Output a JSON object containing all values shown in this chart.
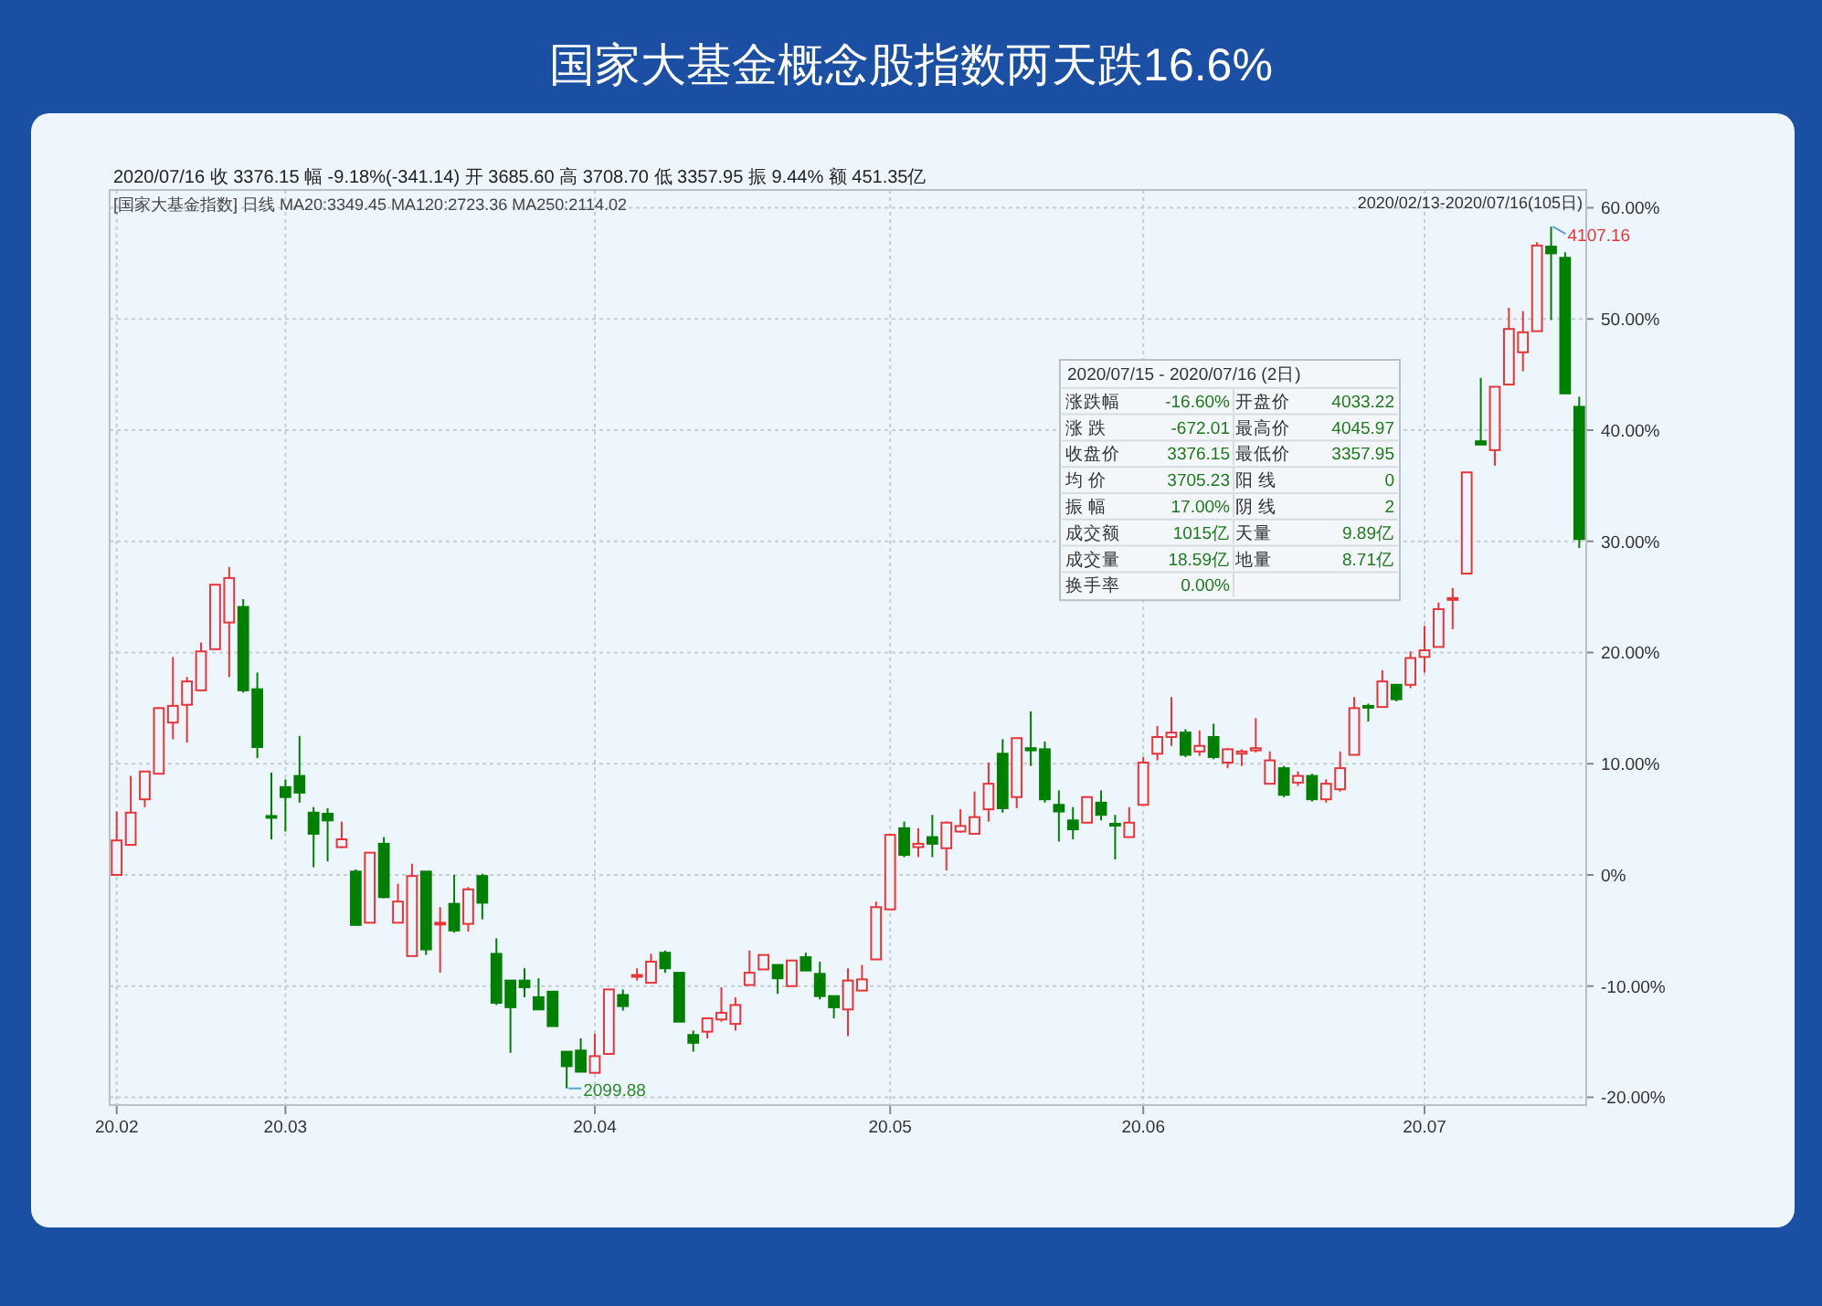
{
  "chart_data": {
    "type": "candlestick",
    "title": "国家大基金概念股指数两天跌16.6%",
    "categories": [
      "20.02",
      null,
      null,
      null,
      null,
      null,
      null,
      null,
      null,
      null,
      null,
      null,
      "20.03",
      null,
      null,
      null,
      null,
      null,
      null,
      null,
      null,
      null,
      null,
      null,
      null,
      null,
      null,
      null,
      null,
      null,
      null,
      null,
      null,
      null,
      "20.04",
      null,
      null,
      null,
      null,
      null,
      null,
      null,
      null,
      null,
      null,
      null,
      null,
      null,
      null,
      null,
      null,
      null,
      null,
      null,
      null,
      "20.05",
      null,
      null,
      null,
      null,
      null,
      null,
      null,
      null,
      null,
      null,
      null,
      null,
      null,
      null,
      null,
      null,
      null,
      "20.06",
      null,
      null,
      null,
      null,
      null,
      null,
      null,
      null,
      null,
      null,
      null,
      null,
      null,
      null,
      null,
      null,
      null,
      null,
      null,
      "20.07",
      null,
      null,
      null,
      null,
      null,
      null,
      null,
      null,
      null,
      null,
      null
    ],
    "ohlc": [
      [
        0,
        5.7,
        0,
        3.1
      ],
      [
        2.7,
        8.9,
        2.7,
        5.6
      ],
      [
        6.8,
        9.3,
        6.1,
        9.3
      ],
      [
        9.1,
        15.1,
        9.1,
        15.0
      ],
      [
        13.7,
        19.6,
        12.2,
        15.2
      ],
      [
        15.3,
        17.8,
        11.9,
        17.4
      ],
      [
        16.6,
        20.9,
        16.6,
        20.1
      ],
      [
        20.3,
        26.1,
        20.3,
        26.1
      ],
      [
        22.7,
        27.7,
        17.8,
        26.7
      ],
      [
        24.1,
        24.8,
        16.4,
        16.6
      ],
      [
        16.7,
        18.2,
        10.5,
        11.5
      ],
      [
        5.3,
        9.2,
        3.2,
        5.2
      ],
      [
        7.9,
        8.6,
        3.9,
        7.0
      ],
      [
        8.9,
        12.5,
        6.5,
        7.4
      ],
      [
        5.6,
        6.1,
        0.7,
        3.7
      ],
      [
        5.5,
        6.0,
        1.2,
        4.9
      ],
      [
        2.5,
        4.8,
        2.4,
        3.2
      ],
      [
        0.3,
        0.5,
        -4.5,
        -4.5
      ],
      [
        -4.3,
        2.0,
        -4.3,
        2.0
      ],
      [
        2.8,
        3.4,
        -2.1,
        -2.0
      ],
      [
        -4.3,
        -0.8,
        -4.3,
        -2.4
      ],
      [
        -7.3,
        1.0,
        -7.3,
        -0.1
      ],
      [
        0.3,
        0.3,
        -7.2,
        -6.7
      ],
      [
        -4.4,
        -2.9,
        -8.8,
        -4.3
      ],
      [
        -2.6,
        0,
        -5.2,
        -5.0
      ],
      [
        -4.4,
        -1.1,
        -5.1,
        -1.3
      ],
      [
        -0.1,
        0.1,
        -4.0,
        -2.5
      ],
      [
        -7.1,
        -5.7,
        -11.7,
        -11.5
      ],
      [
        -9.5,
        -9.5,
        -16.0,
        -11.9
      ],
      [
        -9.5,
        -8.4,
        -11.0,
        -10.1
      ],
      [
        -11.0,
        -9.3,
        -12.1,
        -12.1
      ],
      [
        -10.5,
        -10.5,
        -13.6,
        -13.6
      ],
      [
        -15.9,
        -15.9,
        -19.2,
        -17.2
      ],
      [
        -15.8,
        -14.7,
        -17.7,
        -17.7
      ],
      [
        -17.8,
        -14.3,
        -17.8,
        -16.3
      ],
      [
        -16.1,
        -10.3,
        -16.1,
        -10.3
      ],
      [
        -10.8,
        -10.3,
        -12.2,
        -11.8
      ],
      [
        -9.1,
        -8.4,
        -9.5,
        -9.0
      ],
      [
        -9.7,
        -7.1,
        -9.7,
        -7.8
      ],
      [
        -7.0,
        -6.8,
        -8.8,
        -8.4
      ],
      [
        -8.8,
        -8.8,
        -13.2,
        -13.2
      ],
      [
        -14.4,
        -14.0,
        -15.9,
        -15.1
      ],
      [
        -14.1,
        -12.9,
        -14.7,
        -12.9
      ],
      [
        -13.0,
        -10.1,
        -13.2,
        -12.4
      ],
      [
        -13.4,
        -11.0,
        -14.0,
        -11.7
      ],
      [
        -9.9,
        -6.8,
        -9.9,
        -8.8
      ],
      [
        -8.5,
        -7.2,
        -8.5,
        -7.2
      ],
      [
        -8.1,
        -8.1,
        -10.7,
        -9.3
      ],
      [
        -10.0,
        -7.7,
        -10.0,
        -7.7
      ],
      [
        -7.4,
        -7.0,
        -8.6,
        -8.6
      ],
      [
        -8.9,
        -7.8,
        -11.2,
        -10.9
      ],
      [
        -10.9,
        -10.9,
        -12.9,
        -11.9
      ],
      [
        -12.1,
        -8.4,
        -14.5,
        -9.5
      ],
      [
        -10.4,
        -8.1,
        -10.4,
        -9.4
      ],
      [
        -7.6,
        -2.4,
        -7.6,
        -2.9
      ],
      [
        -3.1,
        3.7,
        -3.1,
        3.6
      ],
      [
        4.2,
        4.8,
        1.6,
        1.8
      ],
      [
        2.5,
        4.2,
        1.6,
        2.8
      ],
      [
        3.4,
        5.4,
        1.6,
        2.8
      ],
      [
        2.4,
        4.8,
        0.4,
        4.7
      ],
      [
        3.9,
        5.9,
        3.8,
        4.4
      ],
      [
        3.7,
        7.5,
        3.7,
        5.2
      ],
      [
        5.9,
        10.1,
        4.8,
        8.2
      ],
      [
        10.9,
        12.2,
        5.6,
        6.0
      ],
      [
        7.0,
        12.3,
        6.0,
        12.3
      ],
      [
        11.4,
        14.7,
        9.8,
        11.2
      ],
      [
        11.3,
        12.0,
        6.5,
        6.8
      ],
      [
        6.3,
        7.6,
        3.0,
        5.7
      ],
      [
        4.9,
        6.1,
        3.2,
        4.1
      ],
      [
        4.7,
        7.0,
        4.7,
        7.0
      ],
      [
        6.5,
        7.6,
        4.9,
        5.4
      ],
      [
        4.6,
        5.4,
        1.4,
        4.5
      ],
      [
        3.4,
        6.1,
        3.4,
        4.7
      ],
      [
        6.3,
        10.6,
        6.3,
        10.1
      ],
      [
        10.9,
        13.4,
        10.3,
        12.4
      ],
      [
        12.4,
        16.0,
        11.6,
        12.8
      ],
      [
        12.8,
        13.1,
        10.6,
        10.8
      ],
      [
        11.1,
        13.0,
        10.7,
        11.6
      ],
      [
        12.4,
        13.6,
        10.4,
        10.6
      ],
      [
        10.1,
        11.4,
        9.6,
        11.3
      ],
      [
        10.9,
        11.3,
        9.8,
        11.1
      ],
      [
        11.2,
        14.1,
        11.0,
        11.4
      ],
      [
        8.2,
        11.1,
        8.2,
        10.3
      ],
      [
        9.6,
        9.8,
        7.0,
        7.2
      ],
      [
        8.3,
        9.3,
        8.0,
        8.9
      ],
      [
        8.9,
        9.1,
        6.6,
        6.8
      ],
      [
        6.8,
        8.6,
        6.5,
        8.2
      ],
      [
        7.7,
        11.1,
        7.5,
        9.6
      ],
      [
        10.8,
        16.0,
        10.8,
        15.0
      ],
      [
        15.2,
        15.4,
        13.8,
        15.1
      ],
      [
        15.1,
        18.4,
        15.1,
        17.4
      ],
      [
        17.1,
        17.1,
        15.6,
        15.8
      ],
      [
        17.1,
        20.1,
        16.8,
        19.5
      ],
      [
        19.6,
        22.4,
        18.2,
        20.2
      ],
      [
        20.5,
        24.5,
        20.5,
        23.9
      ],
      [
        24.8,
        25.8,
        22.1,
        24.9
      ],
      [
        27.1,
        36.2,
        27.1,
        36.2
      ],
      [
        39.0,
        44.7,
        38.7,
        38.7
      ],
      [
        38.2,
        43.9,
        36.8,
        43.9
      ],
      [
        44.1,
        51.0,
        44.1,
        49.1
      ],
      [
        47.0,
        50.7,
        45.3,
        48.8
      ],
      [
        48.9,
        56.9,
        48.9,
        56.6
      ],
      [
        56.5,
        58.3,
        49.9,
        55.9
      ],
      [
        55.5,
        56.0,
        43.3,
        43.3
      ],
      [
        42.1,
        43.0,
        29.4,
        30.2
      ]
    ],
    "colors": [
      "#e8353a",
      "#e8353a",
      "#e8353a",
      "#e8353a",
      "#e8353a",
      "#e8353a",
      "#e8353a",
      "#e8353a",
      "#e8353a",
      "#008000",
      "#008000",
      "#008000",
      "#008000",
      "#008000",
      "#008000",
      "#008000",
      "#e8353a",
      "#008000",
      "#e8353a",
      "#008000",
      "#e8353a",
      "#e8353a",
      "#008000",
      "#e8353a",
      "#008000",
      "#e8353a",
      "#008000",
      "#008000",
      "#008000",
      "#008000",
      "#008000",
      "#008000",
      "#008000",
      "#008000",
      "#e8353a",
      "#e8353a",
      "#008000",
      "#e8353a",
      "#e8353a",
      "#008000",
      "#008000",
      "#008000",
      "#e8353a",
      "#e8353a",
      "#e8353a",
      "#e8353a",
      "#e8353a",
      "#008000",
      "#e8353a",
      "#008000",
      "#008000",
      "#008000",
      "#e8353a",
      "#e8353a",
      "#e8353a",
      "#e8353a",
      "#008000",
      "#e8353a",
      "#008000",
      "#e8353a",
      "#e8353a",
      "#e8353a",
      "#e8353a",
      "#008000",
      "#e8353a",
      "#008000",
      "#008000",
      "#008000",
      "#008000",
      "#e8353a",
      "#008000",
      "#008000",
      "#e8353a",
      "#e8353a",
      "#e8353a",
      "#e8353a",
      "#008000",
      "#e8353a",
      "#008000",
      "#e8353a",
      "#e8353a",
      "#e8353a",
      "#e8353a",
      "#008000",
      "#e8353a",
      "#008000",
      "#e8353a",
      "#e8353a",
      "#e8353a",
      "#008000",
      "#e8353a",
      "#008000",
      "#e8353a",
      "#e8353a",
      "#e8353a",
      "#e8353a",
      "#e8353a",
      "#008000",
      "#e8353a",
      "#e8353a",
      "#e8353a",
      "#e8353a",
      "#008000",
      "#008000",
      "#008000"
    ],
    "ylim": [
      -20.7,
      61.6
    ],
    "yticks": [
      {
        "value": -20,
        "label": "-20.00%"
      },
      {
        "value": -10,
        "label": "-10.00%"
      },
      {
        "value": 0,
        "label": "0%"
      },
      {
        "value": 10,
        "label": "10.00%"
      },
      {
        "value": 20,
        "label": "20.00%"
      },
      {
        "value": 30,
        "label": "30.00%"
      },
      {
        "value": 40,
        "label": "40.00%"
      },
      {
        "value": 50,
        "label": "50.00%"
      },
      {
        "value": 60,
        "label": "60.00%"
      }
    ],
    "grid": true,
    "annotations": [
      "2020/07/16  收 3376.15  幅 -9.18%(-341.14)  开 3685.60  高 3708.70  低 3357.95  振 9.44%  额 451.35亿",
      "[国家大基金指数] 日线  MA20:3349.45  MA120:2723.36  MA250:2114.02",
      "2020/02/13-2020/07/16(105日)",
      "2020/07/15 - 2020/07/16 (2日)",
      "涨跌幅",
      "-16.60%",
      "开盘价",
      "4033.22",
      "涨 跌",
      "-672.01",
      "最高价",
      "4045.97",
      "收盘价",
      "3376.15",
      "最低价",
      "3357.95",
      "均 价",
      "3705.23",
      "阳 线",
      "0",
      "振 幅",
      "17.00%",
      "阴 线",
      "2",
      "成交额",
      "1015亿",
      "天量",
      "9.89亿",
      "成交量",
      "18.59亿",
      "地量",
      "8.71亿",
      "换手率",
      "0.00%",
      "4107.16",
      "2099.88"
    ]
  }
}
